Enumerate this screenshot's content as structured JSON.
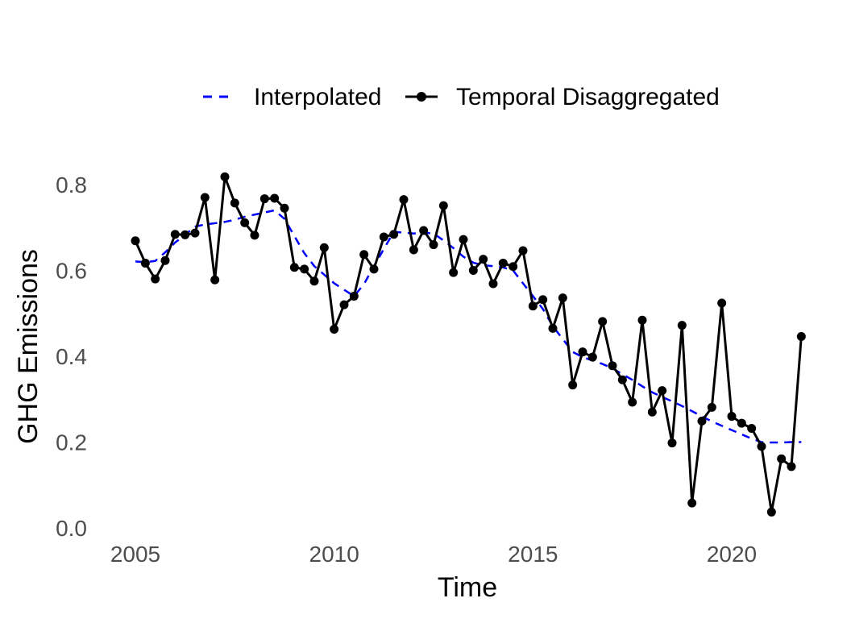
{
  "chart_data": {
    "type": "line",
    "xlabel": "Time",
    "ylabel": "GHG Emissions",
    "xlim": [
      2004.5,
      2022.5
    ],
    "ylim": [
      0,
      0.8
    ],
    "x_ticks": [
      2005,
      2010,
      2015,
      2020
    ],
    "y_ticks": [
      0.0,
      0.2,
      0.4,
      0.6,
      0.8
    ],
    "x_tick_labels": [
      "2005",
      "2010",
      "2015",
      "2020"
    ],
    "y_tick_labels": [
      "0.0",
      "0.2",
      "0.4",
      "0.6",
      "0.8"
    ],
    "grid": false,
    "legend_position": "top",
    "series": [
      {
        "name": "Interpolated",
        "color": "#0000ff",
        "line_style": "dashed",
        "markers": false,
        "x": [
          2005.0,
          2005.25,
          2005.5,
          2005.75,
          2006.0,
          2006.25,
          2006.5,
          2006.75,
          2007.0,
          2007.25,
          2007.5,
          2007.75,
          2008.0,
          2008.25,
          2008.5,
          2008.75,
          2009.0,
          2009.25,
          2009.5,
          2009.75,
          2010.0,
          2010.25,
          2010.5,
          2010.75,
          2011.0,
          2011.25,
          2011.5,
          2011.75,
          2012.0,
          2012.25,
          2012.5,
          2012.75,
          2013.0,
          2013.25,
          2013.5,
          2013.75,
          2014.0,
          2014.25,
          2014.5,
          2014.75,
          2015.0,
          2015.25,
          2015.5,
          2015.75,
          2016.0,
          2016.25,
          2016.5,
          2016.75,
          2017.0,
          2017.25,
          2017.5,
          2017.75,
          2018.0,
          2018.25,
          2018.5,
          2018.75,
          2019.0,
          2019.25,
          2019.5,
          2019.75,
          2020.0,
          2020.25,
          2020.5,
          2020.75,
          2021.0,
          2021.25,
          2021.5,
          2021.75
        ],
        "y": [
          0.621,
          0.619,
          0.622,
          0.642,
          0.665,
          0.683,
          0.702,
          0.707,
          0.71,
          0.713,
          0.718,
          0.725,
          0.73,
          0.735,
          0.74,
          0.72,
          0.68,
          0.64,
          0.61,
          0.59,
          0.57,
          0.555,
          0.54,
          0.568,
          0.61,
          0.65,
          0.69,
          0.688,
          0.686,
          0.688,
          0.686,
          0.67,
          0.652,
          0.632,
          0.618,
          0.612,
          0.61,
          0.607,
          0.6,
          0.57,
          0.54,
          0.51,
          0.47,
          0.44,
          0.41,
          0.398,
          0.39,
          0.382,
          0.372,
          0.358,
          0.345,
          0.33,
          0.316,
          0.305,
          0.295,
          0.284,
          0.272,
          0.26,
          0.248,
          0.238,
          0.228,
          0.218,
          0.208,
          0.2,
          0.199,
          0.199,
          0.2,
          0.2
        ]
      },
      {
        "name": "Temporal Disaggregated",
        "color": "#000000",
        "line_style": "solid",
        "markers": true,
        "x": [
          2005.0,
          2005.25,
          2005.5,
          2005.75,
          2006.0,
          2006.25,
          2006.5,
          2006.75,
          2007.0,
          2007.25,
          2007.5,
          2007.75,
          2008.0,
          2008.25,
          2008.5,
          2008.75,
          2009.0,
          2009.25,
          2009.5,
          2009.75,
          2010.0,
          2010.25,
          2010.5,
          2010.75,
          2011.0,
          2011.25,
          2011.5,
          2011.75,
          2012.0,
          2012.25,
          2012.5,
          2012.75,
          2013.0,
          2013.25,
          2013.5,
          2013.75,
          2014.0,
          2014.25,
          2014.5,
          2014.75,
          2015.0,
          2015.25,
          2015.5,
          2015.75,
          2016.0,
          2016.25,
          2016.5,
          2016.75,
          2017.0,
          2017.25,
          2017.5,
          2017.75,
          2018.0,
          2018.25,
          2018.5,
          2018.75,
          2019.0,
          2019.25,
          2019.5,
          2019.75,
          2020.0,
          2020.25,
          2020.5,
          2020.75,
          2021.0,
          2021.25,
          2021.5,
          2021.75
        ],
        "y": [
          0.669,
          0.617,
          0.58,
          0.623,
          0.684,
          0.683,
          0.687,
          0.77,
          0.578,
          0.818,
          0.757,
          0.711,
          0.682,
          0.767,
          0.768,
          0.745,
          0.607,
          0.603,
          0.575,
          0.653,
          0.463,
          0.52,
          0.54,
          0.637,
          0.603,
          0.678,
          0.684,
          0.765,
          0.648,
          0.693,
          0.66,
          0.751,
          0.595,
          0.672,
          0.6,
          0.626,
          0.569,
          0.617,
          0.609,
          0.646,
          0.517,
          0.532,
          0.465,
          0.536,
          0.333,
          0.41,
          0.398,
          0.481,
          0.378,
          0.345,
          0.293,
          0.484,
          0.27,
          0.32,
          0.198,
          0.472,
          0.058,
          0.249,
          0.281,
          0.524,
          0.26,
          0.244,
          0.232,
          0.19,
          0.037,
          0.161,
          0.143,
          0.446
        ]
      }
    ]
  }
}
